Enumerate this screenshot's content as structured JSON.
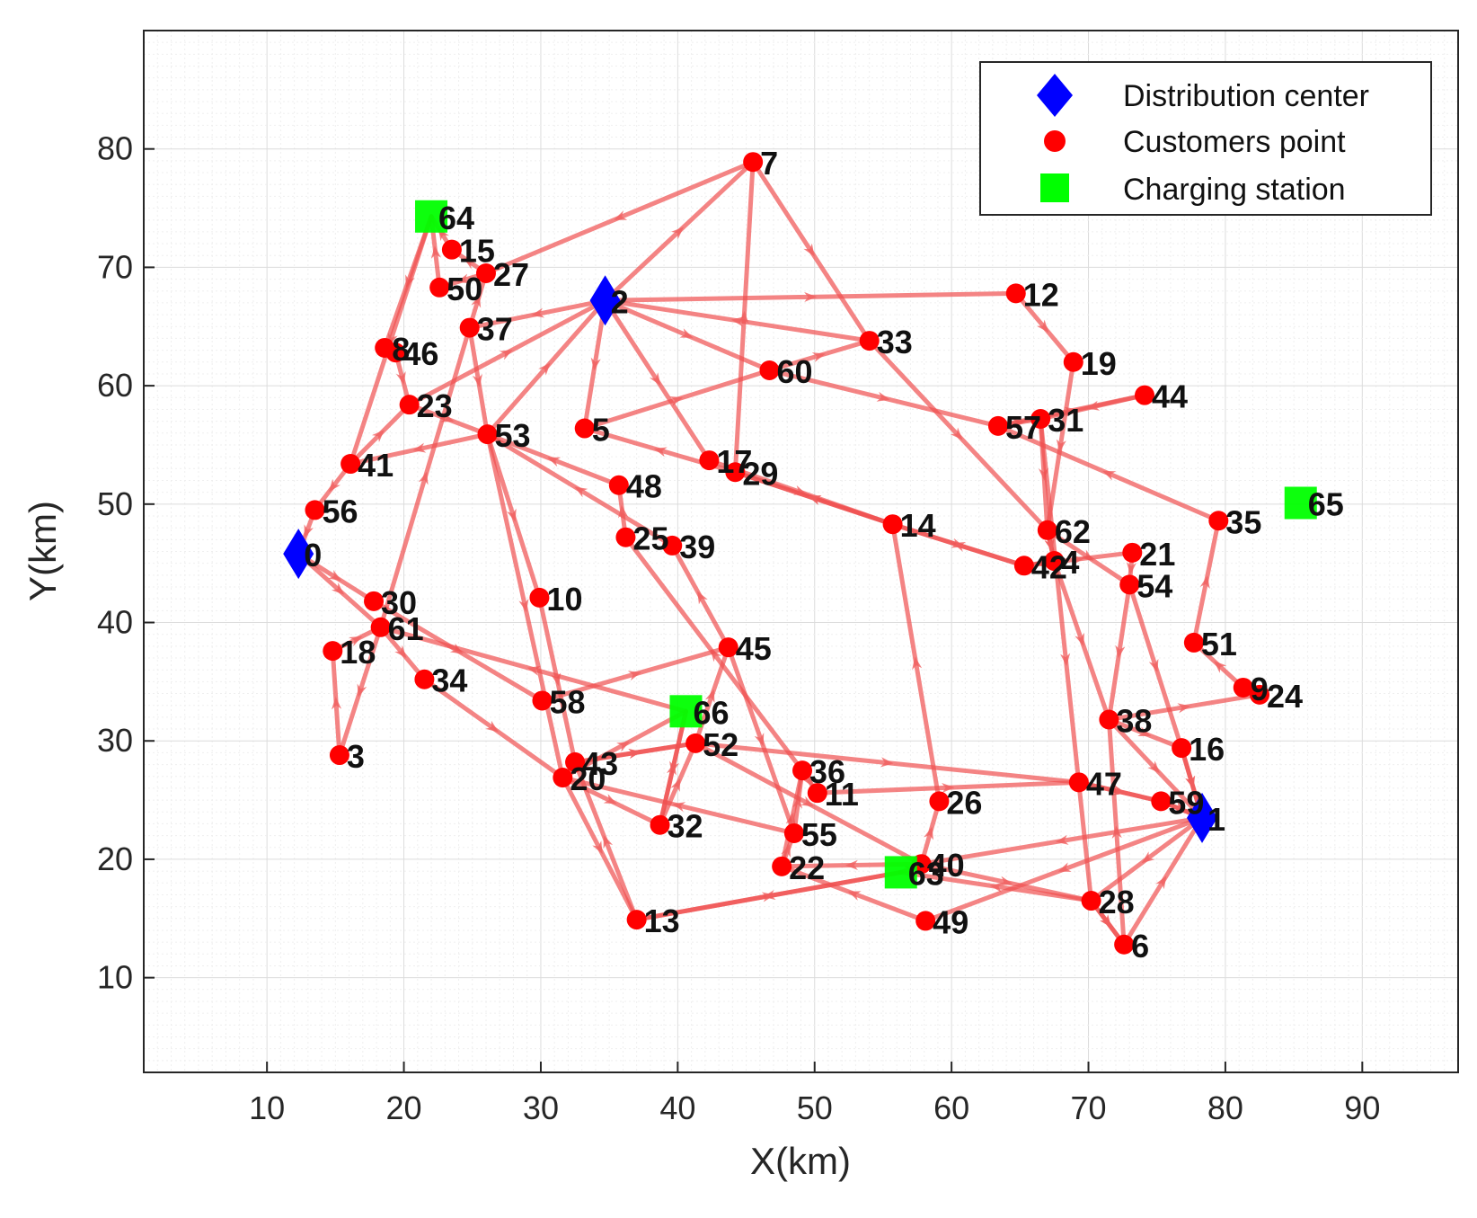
{
  "chart_data": {
    "type": "scatter",
    "title": "",
    "xlabel": "X(km)",
    "ylabel": "Y(km)",
    "xlim": [
      1,
      97
    ],
    "ylim": [
      2,
      90
    ],
    "xticks": [
      10,
      20,
      30,
      40,
      50,
      60,
      70,
      80,
      90
    ],
    "yticks": [
      10,
      20,
      30,
      40,
      50,
      60,
      70,
      80
    ],
    "grid": true,
    "legend_position": "top-right",
    "legend": [
      {
        "key": "distribution",
        "label": "Distribution center",
        "marker": "diamond",
        "color": "#0000ff"
      },
      {
        "key": "customer",
        "label": "Customers point",
        "marker": "circle",
        "color": "#ff0000"
      },
      {
        "key": "charging",
        "label": "Charging station",
        "marker": "square",
        "color": "#00ff00"
      }
    ],
    "route_color": "#f05050",
    "distribution_centers": [
      {
        "id": "0",
        "x": 12.3,
        "y": 45.8
      },
      {
        "id": "1",
        "x": 78.3,
        "y": 23.5
      },
      {
        "id": "2",
        "x": 34.7,
        "y": 67.2
      }
    ],
    "charging_stations": [
      {
        "id": "63",
        "x": 56.3,
        "y": 18.9
      },
      {
        "id": "64",
        "x": 22.0,
        "y": 74.3
      },
      {
        "id": "65",
        "x": 85.5,
        "y": 50.1
      },
      {
        "id": "66",
        "x": 40.6,
        "y": 32.5
      }
    ],
    "customers": [
      {
        "id": "3",
        "x": 15.3,
        "y": 28.8
      },
      {
        "id": "4",
        "x": 67.5,
        "y": 45.2
      },
      {
        "id": "5",
        "x": 33.2,
        "y": 56.4
      },
      {
        "id": "6",
        "x": 72.6,
        "y": 12.8
      },
      {
        "id": "7",
        "x": 45.5,
        "y": 78.9
      },
      {
        "id": "8",
        "x": 18.6,
        "y": 63.2
      },
      {
        "id": "9",
        "x": 81.3,
        "y": 34.5
      },
      {
        "id": "10",
        "x": 29.9,
        "y": 42.1
      },
      {
        "id": "11",
        "x": 50.2,
        "y": 25.6
      },
      {
        "id": "12",
        "x": 64.7,
        "y": 67.8
      },
      {
        "id": "13",
        "x": 37.0,
        "y": 14.9
      },
      {
        "id": "14",
        "x": 55.7,
        "y": 48.3
      },
      {
        "id": "15",
        "x": 23.5,
        "y": 71.5
      },
      {
        "id": "16",
        "x": 76.8,
        "y": 29.4
      },
      {
        "id": "17",
        "x": 42.3,
        "y": 53.7
      },
      {
        "id": "18",
        "x": 14.8,
        "y": 37.6
      },
      {
        "id": "19",
        "x": 68.9,
        "y": 62.0
      },
      {
        "id": "20",
        "x": 31.6,
        "y": 26.9
      },
      {
        "id": "21",
        "x": 73.2,
        "y": 45.9
      },
      {
        "id": "22",
        "x": 47.6,
        "y": 19.4
      },
      {
        "id": "23",
        "x": 20.4,
        "y": 58.4
      },
      {
        "id": "24",
        "x": 82.5,
        "y": 33.9
      },
      {
        "id": "25",
        "x": 36.2,
        "y": 47.2
      },
      {
        "id": "26",
        "x": 59.1,
        "y": 24.9
      },
      {
        "id": "27",
        "x": 26.0,
        "y": 69.5
      },
      {
        "id": "28",
        "x": 70.2,
        "y": 16.5
      },
      {
        "id": "29",
        "x": 44.2,
        "y": 52.7
      },
      {
        "id": "30",
        "x": 17.8,
        "y": 41.8
      },
      {
        "id": "31",
        "x": 66.5,
        "y": 57.2
      },
      {
        "id": "32",
        "x": 38.7,
        "y": 22.9
      },
      {
        "id": "33",
        "x": 54.0,
        "y": 63.8
      },
      {
        "id": "34",
        "x": 21.5,
        "y": 35.2
      },
      {
        "id": "35",
        "x": 79.5,
        "y": 48.6
      },
      {
        "id": "36",
        "x": 49.1,
        "y": 27.5
      },
      {
        "id": "37",
        "x": 24.8,
        "y": 64.9
      },
      {
        "id": "38",
        "x": 71.5,
        "y": 31.8
      },
      {
        "id": "39",
        "x": 39.6,
        "y": 46.5
      },
      {
        "id": "40",
        "x": 57.8,
        "y": 19.6
      },
      {
        "id": "41",
        "x": 16.1,
        "y": 53.4
      },
      {
        "id": "42",
        "x": 65.3,
        "y": 44.8
      },
      {
        "id": "43",
        "x": 32.5,
        "y": 28.2
      },
      {
        "id": "44",
        "x": 74.1,
        "y": 59.2
      },
      {
        "id": "45",
        "x": 43.7,
        "y": 37.9
      },
      {
        "id": "46",
        "x": 19.4,
        "y": 62.8
      },
      {
        "id": "47",
        "x": 69.3,
        "y": 26.5
      },
      {
        "id": "48",
        "x": 35.7,
        "y": 51.6
      },
      {
        "id": "49",
        "x": 58.1,
        "y": 14.8
      },
      {
        "id": "50",
        "x": 22.6,
        "y": 68.3
      },
      {
        "id": "51",
        "x": 77.7,
        "y": 38.3
      },
      {
        "id": "52",
        "x": 41.3,
        "y": 29.8
      },
      {
        "id": "53",
        "x": 26.1,
        "y": 55.9
      },
      {
        "id": "54",
        "x": 73.0,
        "y": 43.2
      },
      {
        "id": "55",
        "x": 48.5,
        "y": 22.2
      },
      {
        "id": "56",
        "x": 13.5,
        "y": 49.5
      },
      {
        "id": "57",
        "x": 63.4,
        "y": 56.6
      },
      {
        "id": "58",
        "x": 30.1,
        "y": 33.4
      },
      {
        "id": "59",
        "x": 75.3,
        "y": 24.9
      },
      {
        "id": "60",
        "x": 46.7,
        "y": 61.3
      },
      {
        "id": "61",
        "x": 18.3,
        "y": 39.6
      },
      {
        "id": "62",
        "x": 67.0,
        "y": 47.8
      }
    ],
    "routes": [
      [
        "2",
        "7",
        "33",
        "62",
        "54",
        "16",
        "1",
        "40",
        "22",
        "36",
        "11",
        "47",
        "59",
        "1"
      ],
      [
        "2",
        "60",
        "57",
        "31",
        "62",
        "4",
        "42",
        "14",
        "29",
        "5",
        "60",
        "33",
        "2"
      ],
      [
        "2",
        "17",
        "14",
        "42",
        "21",
        "54",
        "38",
        "24",
        "9",
        "51",
        "35",
        "57",
        "44",
        "31",
        "28",
        "6",
        "38",
        "1",
        "28",
        "63",
        "13",
        "43",
        "52",
        "45",
        "39",
        "53",
        "2"
      ],
      [
        "2",
        "12",
        "19",
        "62",
        "4",
        "38",
        "16",
        "1",
        "49",
        "22",
        "55",
        "36",
        "25",
        "48",
        "53",
        "41",
        "56",
        "0"
      ],
      [
        "0",
        "30",
        "58",
        "45",
        "55",
        "20",
        "66",
        "32",
        "52",
        "40",
        "26",
        "14",
        "29",
        "7",
        "27",
        "15",
        "64",
        "8",
        "46",
        "23",
        "53",
        "10",
        "43",
        "52",
        "47",
        "59",
        "1"
      ],
      [
        "0",
        "61",
        "34",
        "20",
        "32",
        "66",
        "61",
        "3",
        "18",
        "61",
        "37",
        "27",
        "50",
        "64",
        "41",
        "23",
        "2",
        "5"
      ],
      [
        "2",
        "37",
        "53",
        "20",
        "13",
        "63",
        "40",
        "28",
        "6",
        "1"
      ]
    ]
  }
}
